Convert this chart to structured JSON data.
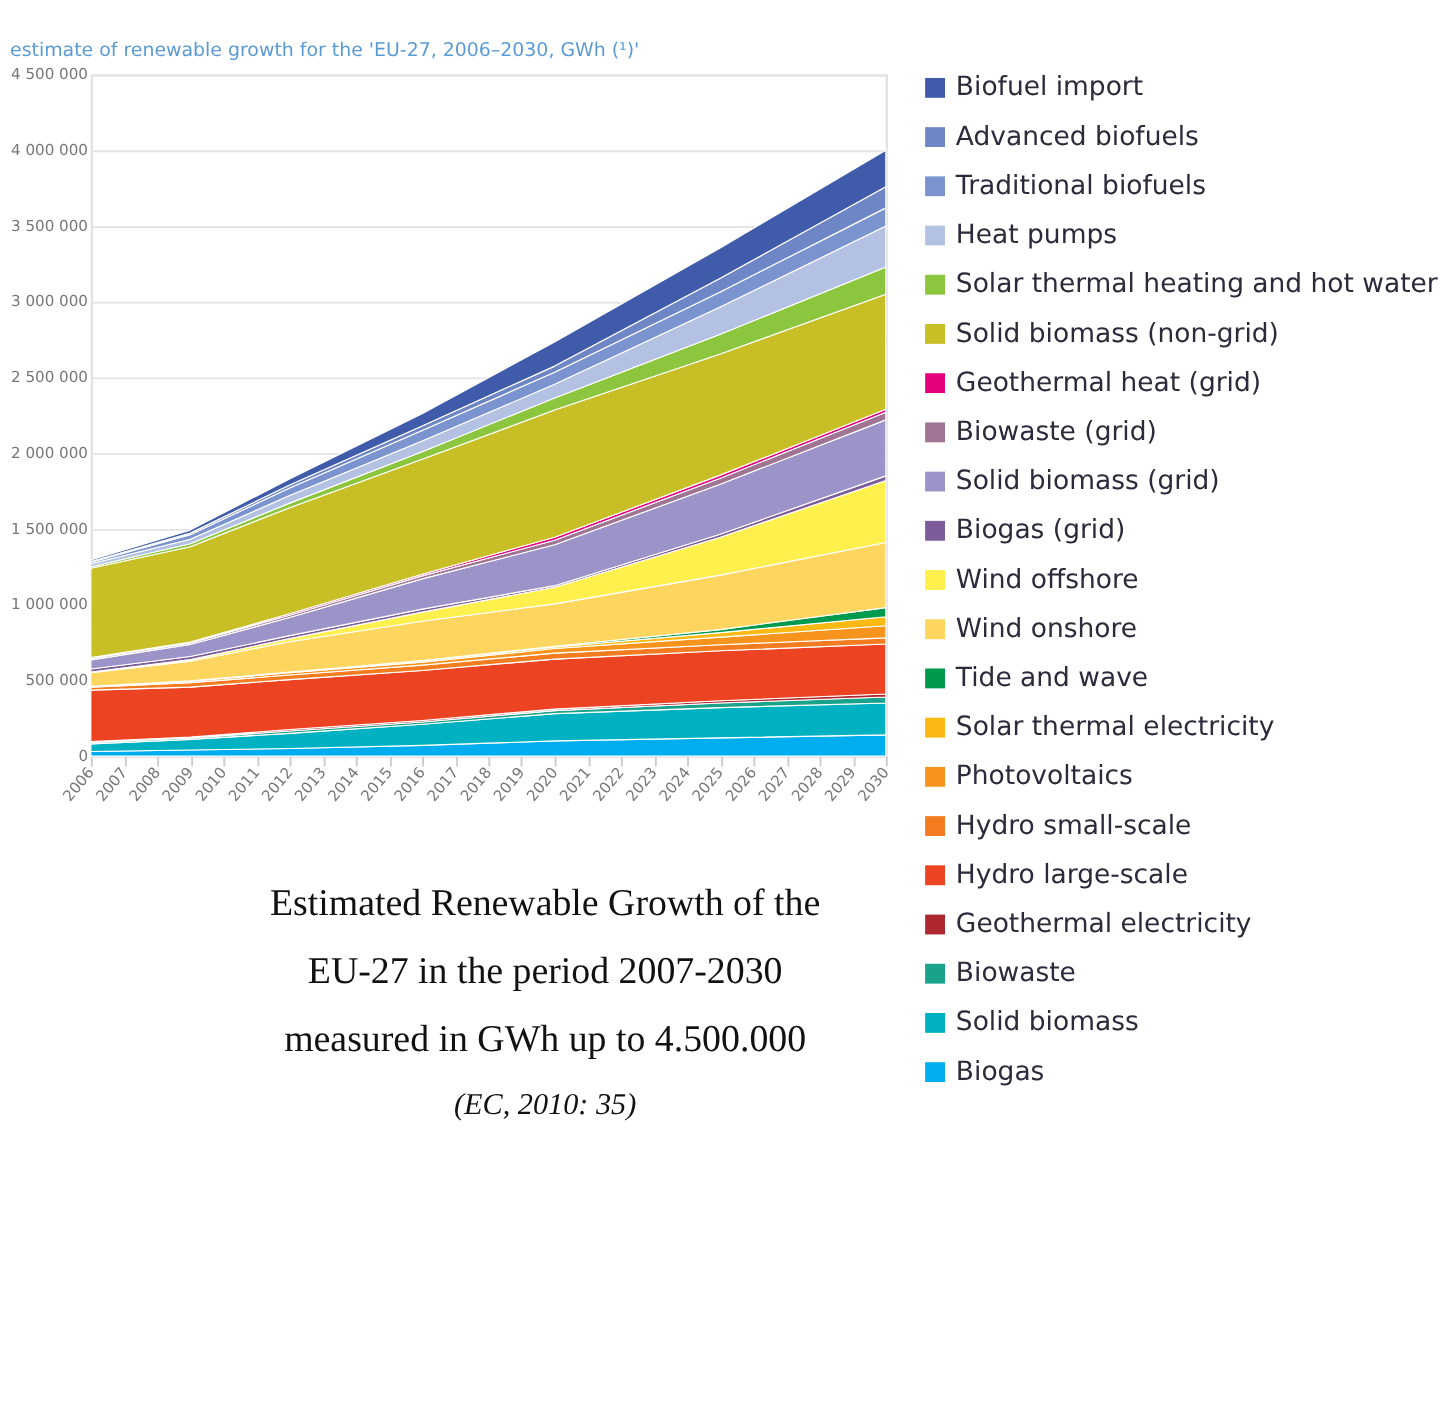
{
  "chart_data": {
    "type": "area",
    "stacked": true,
    "title": "estimate of renewable growth for the 'EU-27, 2006–2030, GWh (¹)'",
    "x": [
      2006,
      2009,
      2012,
      2016,
      2020,
      2025,
      2030
    ],
    "series": [
      {
        "name": "Biogas",
        "color": "#00aeef",
        "values": [
          30000,
          40000,
          50000,
          70000,
          100000,
          120000,
          140000
        ]
      },
      {
        "name": "Solid biomass",
        "color": "#00b1c1",
        "values": [
          50000,
          70000,
          100000,
          140000,
          180000,
          200000,
          210000
        ]
      },
      {
        "name": "Biowaste",
        "color": "#1aa28a",
        "values": [
          10000,
          10000,
          15000,
          15000,
          20000,
          30000,
          40000
        ]
      },
      {
        "name": "Geothermal electricity",
        "color": "#b0282f",
        "values": [
          5000,
          5000,
          10000,
          10000,
          10000,
          15000,
          20000
        ]
      },
      {
        "name": "Hydro large-scale",
        "color": "#ec4323",
        "values": [
          340000,
          330000,
          330000,
          330000,
          330000,
          330000,
          330000
        ]
      },
      {
        "name": "Hydro small-scale",
        "color": "#f47c20",
        "values": [
          20000,
          30000,
          30000,
          35000,
          40000,
          40000,
          40000
        ]
      },
      {
        "name": "Photovoltaics",
        "color": "#f7941d",
        "values": [
          5000,
          10000,
          15000,
          20000,
          30000,
          50000,
          80000
        ]
      },
      {
        "name": "Solar thermal electricity",
        "color": "#fdb913",
        "values": [
          0,
          2000,
          5000,
          10000,
          10000,
          30000,
          60000
        ]
      },
      {
        "name": "Tide and wave",
        "color": "#009a4e",
        "values": [
          0,
          0,
          0,
          0,
          5000,
          20000,
          60000
        ]
      },
      {
        "name": "Wind onshore",
        "color": "#fdd55f",
        "values": [
          90000,
          130000,
          200000,
          260000,
          280000,
          360000,
          430000
        ]
      },
      {
        "name": "Wind offshore",
        "color": "#fff04d",
        "values": [
          5000,
          10000,
          20000,
          60000,
          110000,
          250000,
          410000
        ]
      },
      {
        "name": "Biogas (grid)",
        "color": "#7d5d99",
        "values": [
          20000,
          20000,
          20000,
          20000,
          10000,
          20000,
          30000
        ]
      },
      {
        "name": "Solid biomass (grid)",
        "color": "#9c94c9",
        "values": [
          60000,
          80000,
          120000,
          200000,
          270000,
          330000,
          370000
        ]
      },
      {
        "name": "Biowaste (grid)",
        "color": "#a07593",
        "values": [
          10000,
          10000,
          15000,
          20000,
          30000,
          40000,
          50000
        ]
      },
      {
        "name": "Geothermal heat (grid)",
        "color": "#e6007e",
        "values": [
          5000,
          5000,
          10000,
          10000,
          20000,
          20000,
          20000
        ]
      },
      {
        "name": "Solid biomass (non-grid)",
        "color": "#c8bf27",
        "values": [
          590000,
          630000,
          700000,
          760000,
          840000,
          800000,
          760000
        ]
      },
      {
        "name": "Solar thermal heating and hot water",
        "color": "#8cc63f",
        "values": [
          10000,
          20000,
          30000,
          50000,
          80000,
          130000,
          180000
        ]
      },
      {
        "name": "Heat pumps",
        "color": "#b3c1e3",
        "values": [
          20000,
          30000,
          50000,
          70000,
          90000,
          180000,
          270000
        ]
      },
      {
        "name": "Traditional biofuels",
        "color": "#7b93cf",
        "values": [
          10000,
          30000,
          50000,
          70000,
          80000,
          100000,
          120000
        ]
      },
      {
        "name": "Advanced biofuels",
        "color": "#6f86c6",
        "values": [
          5000,
          10000,
          20000,
          30000,
          40000,
          90000,
          140000
        ]
      },
      {
        "name": "Biofuel import",
        "color": "#3f5ba9",
        "values": [
          10000,
          20000,
          40000,
          80000,
          160000,
          200000,
          240000
        ]
      }
    ],
    "xlim": [
      2006,
      2030
    ],
    "xticks": [
      2006,
      2007,
      2008,
      2009,
      2010,
      2011,
      2012,
      2013,
      2014,
      2015,
      2016,
      2017,
      2018,
      2019,
      2020,
      2021,
      2022,
      2023,
      2024,
      2025,
      2026,
      2027,
      2028,
      2029,
      2030
    ],
    "ylim": [
      0,
      4500000
    ],
    "yticks": [
      0,
      {
        "value": 500000,
        "label": "500 000"
      },
      {
        "value": 1000000,
        "label": "1 000 000"
      },
      {
        "value": 1500000,
        "label": "1 500 000"
      },
      {
        "value": 2000000,
        "label": "2 000 000"
      },
      {
        "value": 2500000,
        "label": "2 500 000"
      },
      {
        "value": 3000000,
        "label": "3 000 000"
      },
      {
        "value": 3500000,
        "label": "3 500 000"
      },
      {
        "value": 4000000,
        "label": "4 000 000"
      },
      {
        "value": 4500000,
        "label": "4 500 000"
      }
    ],
    "grid": "y",
    "legend": "right",
    "annotations": [
      "Estimated Renewable Growth of the EU-27 in the period 2007-2030 measured in GWh up to 4.500.000",
      "(EC, 2010: 35)"
    ]
  }
}
